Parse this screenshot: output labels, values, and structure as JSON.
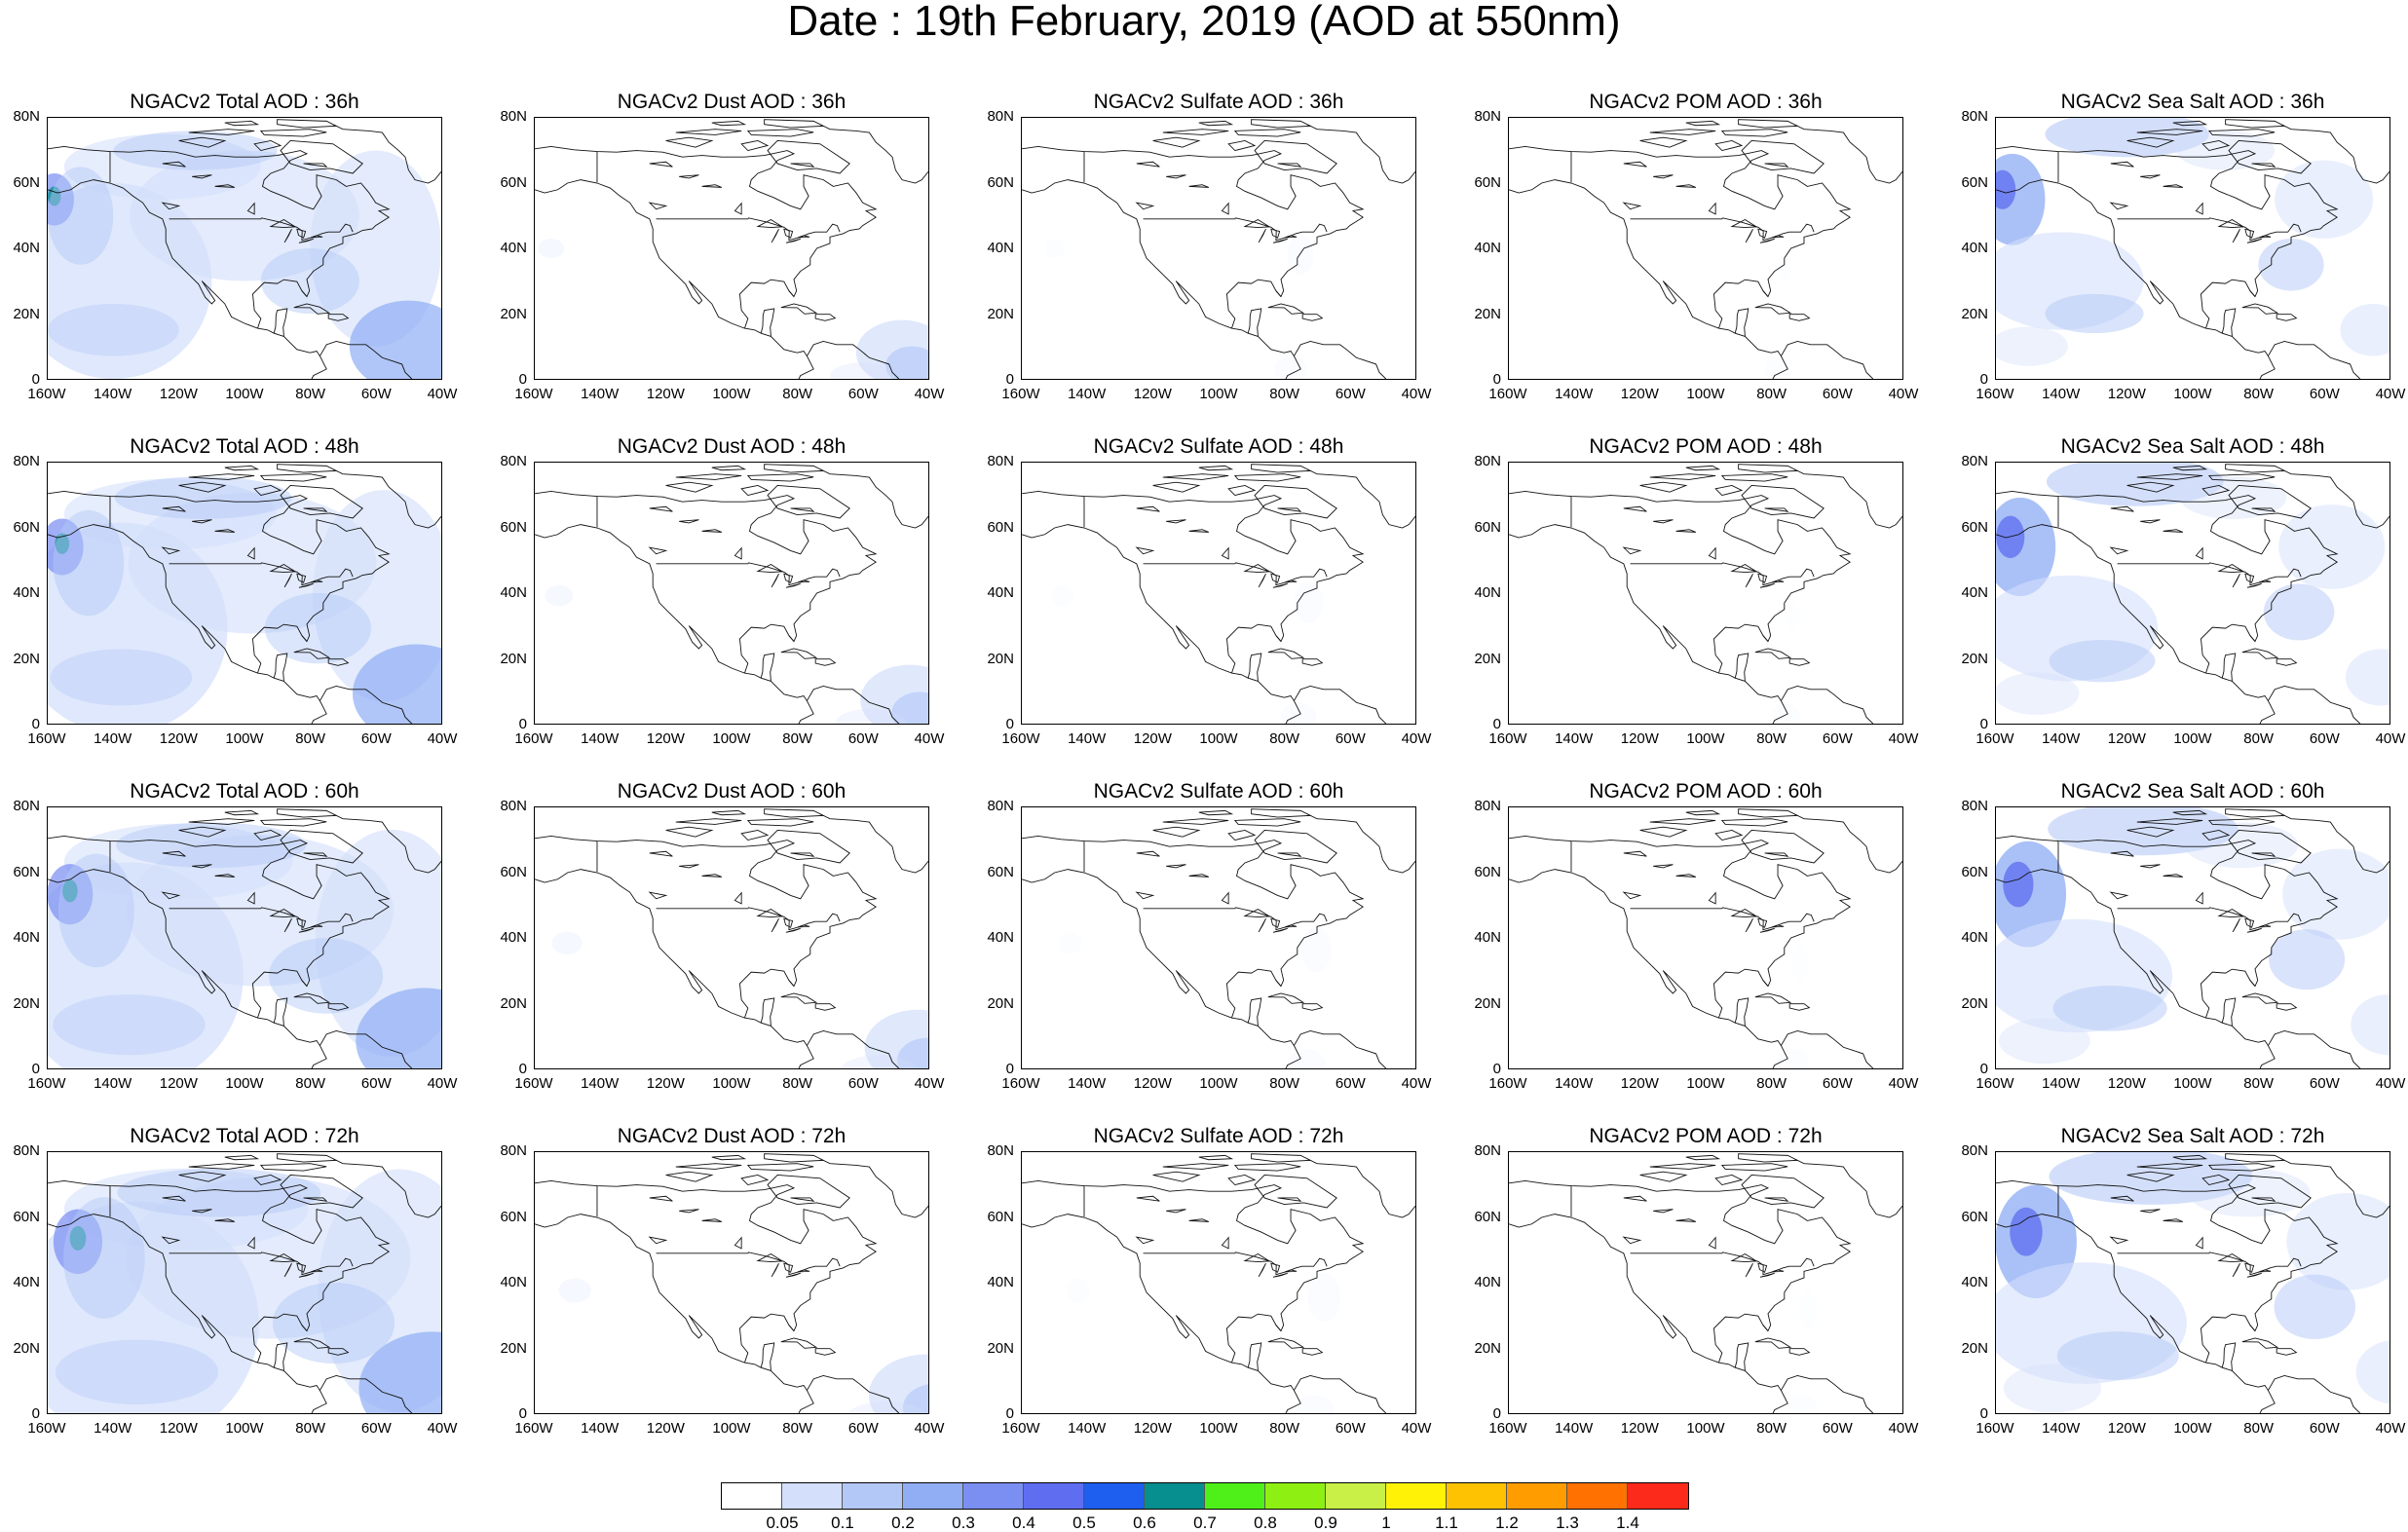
{
  "title": "Date : 19th February, 2019 (AOD at 550nm)",
  "axes": {
    "lat_ticks": [
      "0",
      "20N",
      "40N",
      "60N",
      "80N"
    ],
    "lon_ticks": [
      "160W",
      "140W",
      "120W",
      "100W",
      "80W",
      "60W",
      "40W"
    ]
  },
  "species": [
    {
      "key": "total",
      "intensity": 0.8
    },
    {
      "key": "dust",
      "intensity": 0.45
    },
    {
      "key": "sulfate",
      "intensity": 0.15
    },
    {
      "key": "pom",
      "intensity": 0.1
    },
    {
      "key": "seasalt",
      "intensity": 0.85
    }
  ],
  "forecast_hours": [
    "36h",
    "48h",
    "60h",
    "72h"
  ],
  "panels": [
    [
      "NGACv2 Total AOD : 36h",
      "NGACv2 Dust AOD : 36h",
      "NGACv2 Sulfate AOD : 36h",
      "NGACv2 POM AOD : 36h",
      "NGACv2 Sea Salt AOD : 36h"
    ],
    [
      "NGACv2 Total AOD : 48h",
      "NGACv2 Dust AOD : 48h",
      "NGACv2 Sulfate AOD : 48h",
      "NGACv2 POM AOD : 48h",
      "NGACv2 Sea Salt AOD : 48h"
    ],
    [
      "NGACv2 Total AOD : 60h",
      "NGACv2 Dust AOD : 60h",
      "NGACv2 Sulfate AOD : 60h",
      "NGACv2 POM AOD : 60h",
      "NGACv2 Sea Salt AOD : 60h"
    ],
    [
      "NGACv2 Total AOD : 72h",
      "NGACv2 Dust AOD : 72h",
      "NGACv2 Sulfate AOD : 72h",
      "NGACv2 POM AOD : 72h",
      "NGACv2 Sea Salt  AOD : 72h"
    ]
  ],
  "colorbar": {
    "colors": [
      "#ffffff",
      "#d3dffb",
      "#b4c8f7",
      "#91aef5",
      "#7b8ff3",
      "#5f6ef0",
      "#1f5ff0",
      "#078e8e",
      "#4ff01a",
      "#8ef012",
      "#c8f046",
      "#fff207",
      "#ffc203",
      "#ff9c00",
      "#ff7100",
      "#fc2a1b"
    ],
    "labels": [
      "0.05",
      "0.1",
      "0.2",
      "0.3",
      "0.4",
      "0.5",
      "0.6",
      "0.7",
      "0.8",
      "0.9",
      "1",
      "1.1",
      "1.2",
      "1.3",
      "1.4"
    ]
  }
}
